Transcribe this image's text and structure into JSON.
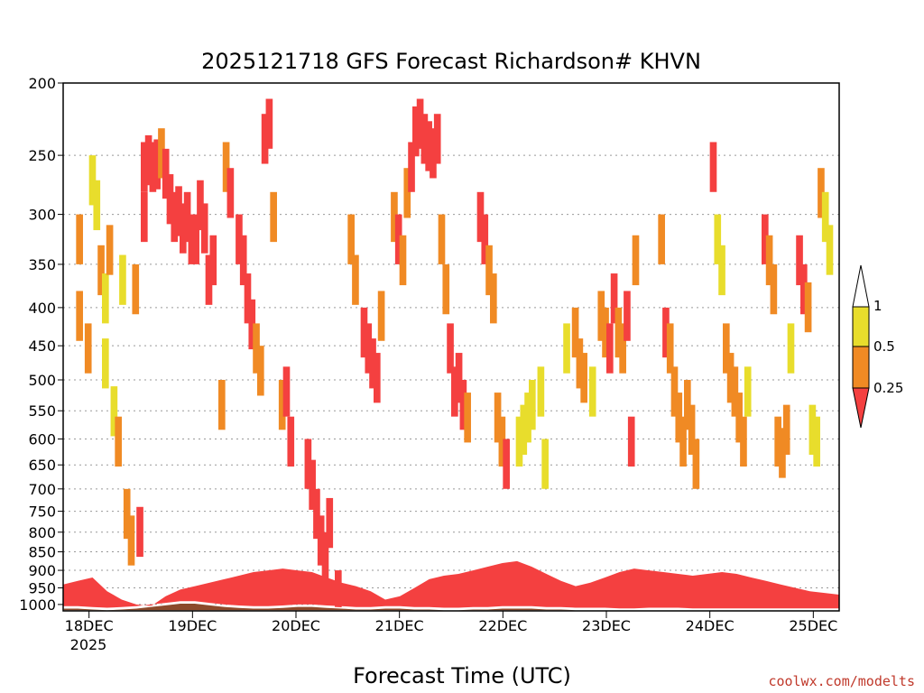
{
  "chart_data": {
    "type": "heatmap",
    "title": "2025121718 GFS Forecast Richardson# KHVN",
    "xlabel": "Forecast Time (UTC)",
    "credit": "coolwx.com/modelts",
    "x_ticks": [
      {
        "label": "18DEC",
        "hour": 6
      },
      {
        "label": "19DEC",
        "hour": 30
      },
      {
        "label": "20DEC",
        "hour": 54
      },
      {
        "label": "21DEC",
        "hour": 78
      },
      {
        "label": "22DEC",
        "hour": 102
      },
      {
        "label": "23DEC",
        "hour": 126
      },
      {
        "label": "24DEC",
        "hour": 150
      },
      {
        "label": "25DEC",
        "hour": 174
      }
    ],
    "x_year_label": "2025",
    "xlim_hours": [
      0,
      180
    ],
    "y_ticks": [
      200,
      250,
      300,
      350,
      400,
      450,
      500,
      550,
      600,
      650,
      700,
      750,
      800,
      850,
      900,
      950,
      1000
    ],
    "ylim_hpa": [
      200,
      1020
    ],
    "y_scale": "log-pressure",
    "grid": "dotted",
    "legend": {
      "placement": "right",
      "labels": [
        "1",
        "0.5",
        "0.25"
      ],
      "classes": [
        {
          "range": "0.5-1",
          "color": "#e8dd2c"
        },
        {
          "range": "0.25-0.5",
          "color": "#f08a24"
        },
        {
          "range": "<0.25",
          "color": "#f44040"
        }
      ]
    },
    "colors": {
      "low": "#f44040",
      "mid": "#f08a24",
      "high": "#e8dd2c",
      "ground": "#8b4a2b"
    },
    "cells": [
      [
        3,
        380,
        2
      ],
      [
        3,
        300,
        2
      ],
      [
        5,
        420,
        2
      ],
      [
        6,
        250,
        3
      ],
      [
        7,
        270,
        3
      ],
      [
        8,
        330,
        2
      ],
      [
        9,
        360,
        3
      ],
      [
        9,
        440,
        3
      ],
      [
        10,
        310,
        2
      ],
      [
        11,
        510,
        3
      ],
      [
        12,
        560,
        2
      ],
      [
        13,
        340,
        3
      ],
      [
        14,
        700,
        2
      ],
      [
        15,
        760,
        2
      ],
      [
        16,
        350,
        2
      ],
      [
        17,
        740,
        1
      ],
      [
        18,
        240,
        1
      ],
      [
        18,
        280,
        1
      ],
      [
        19,
        235,
        1
      ],
      [
        20,
        240,
        1
      ],
      [
        21,
        238,
        1
      ],
      [
        22,
        230,
        2
      ],
      [
        23,
        245,
        1
      ],
      [
        24,
        265,
        1
      ],
      [
        25,
        280,
        1
      ],
      [
        26,
        275,
        1
      ],
      [
        27,
        290,
        1
      ],
      [
        28,
        280,
        1
      ],
      [
        29,
        300,
        1
      ],
      [
        30,
        300,
        1
      ],
      [
        31,
        270,
        1
      ],
      [
        32,
        290,
        1
      ],
      [
        33,
        340,
        1
      ],
      [
        34,
        320,
        1
      ],
      [
        36,
        500,
        2
      ],
      [
        37,
        240,
        2
      ],
      [
        38,
        260,
        1
      ],
      [
        40,
        300,
        1
      ],
      [
        41,
        320,
        1
      ],
      [
        42,
        360,
        1
      ],
      [
        43,
        390,
        1
      ],
      [
        44,
        420,
        2
      ],
      [
        45,
        450,
        2
      ],
      [
        46,
        220,
        1
      ],
      [
        47,
        210,
        1
      ],
      [
        48,
        280,
        2
      ],
      [
        50,
        500,
        2
      ],
      [
        51,
        480,
        1
      ],
      [
        52,
        560,
        1
      ],
      [
        56,
        600,
        1
      ],
      [
        57,
        640,
        1
      ],
      [
        58,
        700,
        1
      ],
      [
        59,
        760,
        1
      ],
      [
        60,
        800,
        1
      ],
      [
        61,
        720,
        1
      ],
      [
        63,
        900,
        1
      ],
      [
        66,
        300,
        2
      ],
      [
        67,
        340,
        2
      ],
      [
        69,
        400,
        1
      ],
      [
        70,
        420,
        1
      ],
      [
        71,
        440,
        1
      ],
      [
        72,
        460,
        1
      ],
      [
        73,
        380,
        2
      ],
      [
        76,
        280,
        2
      ],
      [
        77,
        300,
        1
      ],
      [
        78,
        320,
        2
      ],
      [
        79,
        260,
        2
      ],
      [
        80,
        240,
        1
      ],
      [
        81,
        215,
        1
      ],
      [
        82,
        210,
        1
      ],
      [
        83,
        220,
        1
      ],
      [
        84,
        225,
        1
      ],
      [
        85,
        230,
        1
      ],
      [
        86,
        220,
        1
      ],
      [
        87,
        300,
        2
      ],
      [
        88,
        350,
        2
      ],
      [
        89,
        420,
        1
      ],
      [
        90,
        480,
        1
      ],
      [
        91,
        460,
        1
      ],
      [
        92,
        500,
        1
      ],
      [
        93,
        520,
        2
      ],
      [
        96,
        280,
        1
      ],
      [
        97,
        300,
        1
      ],
      [
        98,
        330,
        2
      ],
      [
        99,
        360,
        2
      ],
      [
        100,
        520,
        2
      ],
      [
        101,
        560,
        2
      ],
      [
        102,
        600,
        1
      ],
      [
        105,
        560,
        3
      ],
      [
        106,
        540,
        3
      ],
      [
        107,
        520,
        3
      ],
      [
        108,
        500,
        3
      ],
      [
        110,
        480,
        3
      ],
      [
        111,
        600,
        3
      ],
      [
        116,
        420,
        3
      ],
      [
        118,
        400,
        2
      ],
      [
        119,
        440,
        2
      ],
      [
        120,
        460,
        2
      ],
      [
        122,
        480,
        3
      ],
      [
        124,
        380,
        2
      ],
      [
        125,
        400,
        2
      ],
      [
        126,
        420,
        1
      ],
      [
        127,
        360,
        1
      ],
      [
        128,
        400,
        2
      ],
      [
        129,
        420,
        2
      ],
      [
        130,
        380,
        1
      ],
      [
        131,
        560,
        1
      ],
      [
        132,
        320,
        2
      ],
      [
        138,
        300,
        2
      ],
      [
        139,
        400,
        1
      ],
      [
        140,
        420,
        2
      ],
      [
        141,
        480,
        2
      ],
      [
        142,
        520,
        2
      ],
      [
        143,
        560,
        2
      ],
      [
        144,
        500,
        2
      ],
      [
        145,
        540,
        2
      ],
      [
        146,
        600,
        2
      ],
      [
        150,
        240,
        1
      ],
      [
        151,
        300,
        3
      ],
      [
        152,
        330,
        3
      ],
      [
        153,
        420,
        2
      ],
      [
        154,
        460,
        2
      ],
      [
        155,
        480,
        2
      ],
      [
        156,
        520,
        2
      ],
      [
        157,
        560,
        2
      ],
      [
        158,
        480,
        3
      ],
      [
        162,
        300,
        1
      ],
      [
        163,
        320,
        2
      ],
      [
        164,
        350,
        2
      ],
      [
        165,
        560,
        2
      ],
      [
        166,
        580,
        2
      ],
      [
        167,
        540,
        2
      ],
      [
        168,
        420,
        3
      ],
      [
        170,
        320,
        1
      ],
      [
        171,
        350,
        1
      ],
      [
        172,
        370,
        2
      ],
      [
        173,
        540,
        3
      ],
      [
        174,
        560,
        3
      ],
      [
        175,
        260,
        2
      ],
      [
        176,
        280,
        3
      ],
      [
        177,
        310,
        3
      ]
    ]
  }
}
